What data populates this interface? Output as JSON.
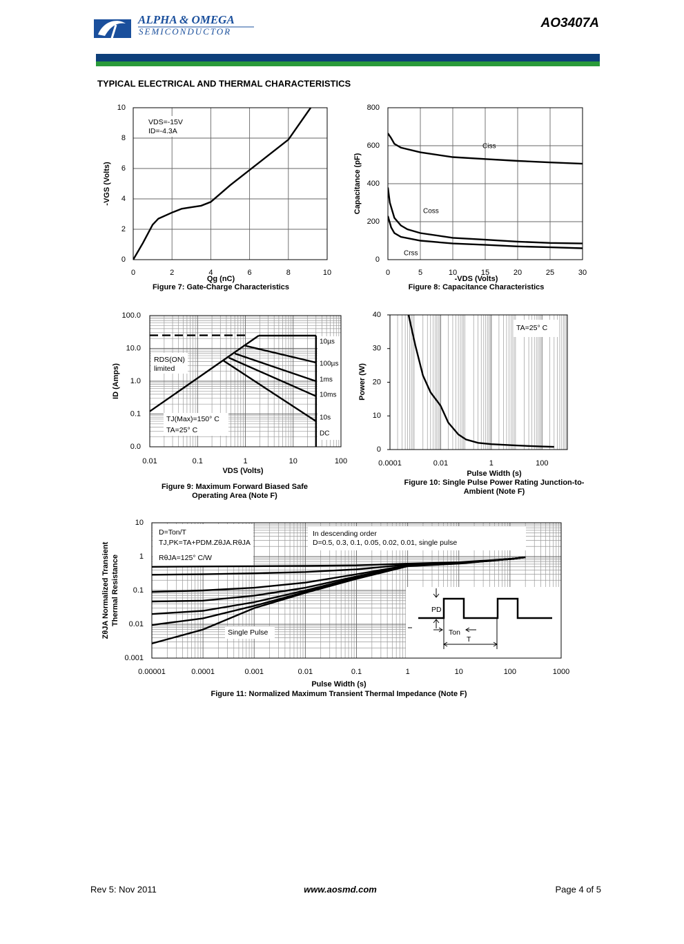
{
  "header": {
    "logo_line1": "ALPHA & OMEGA",
    "logo_line2": "SEMICONDUCTOR",
    "part": "AO3407A"
  },
  "section_title": "TYPICAL ELECTRICAL AND THERMAL CHARACTERISTICS",
  "chart_data": [
    {
      "type": "line",
      "title": "Figure 7: Gate-Charge Characteristics",
      "xlabel": "Qg (nC)",
      "ylabel": "-VGS (Volts)",
      "xscale": "linear",
      "yscale": "linear",
      "xlim": [
        0,
        10
      ],
      "ylim": [
        0,
        10
      ],
      "xticks": [
        0,
        2,
        4,
        6,
        8,
        10
      ],
      "yticks": [
        0,
        2,
        4,
        6,
        8,
        10
      ],
      "grid": true,
      "color": "#000000",
      "annotations": [
        "VDS=-15V",
        "ID=-4.3A"
      ],
      "series": [
        {
          "x": [
            0,
            0.5,
            1,
            1.3,
            2,
            2.5,
            3,
            3.5,
            4,
            5,
            6,
            7,
            8,
            9.15
          ],
          "values": [
            0,
            1.1,
            2.3,
            2.7,
            3.1,
            3.35,
            3.45,
            3.55,
            3.8,
            4.9,
            5.9,
            6.9,
            7.9,
            10
          ]
        }
      ]
    },
    {
      "type": "line",
      "title": "Figure 8: Capacitance Characteristics",
      "xlabel": "-VDS (Volts)",
      "ylabel": "Capacitance (pF)",
      "xscale": "linear",
      "yscale": "linear",
      "xlim": [
        0,
        30
      ],
      "ylim": [
        0,
        800
      ],
      "xticks": [
        0,
        5,
        10,
        15,
        20,
        25,
        30
      ],
      "yticks": [
        0,
        200,
        400,
        600,
        800
      ],
      "grid": true,
      "color": "#000000",
      "series": [
        {
          "name": "Ciss",
          "x": [
            0,
            0.5,
            1,
            2,
            5,
            10,
            15,
            20,
            25,
            30
          ],
          "values": [
            665,
            640,
            610,
            590,
            565,
            540,
            530,
            520,
            512,
            505
          ]
        },
        {
          "name": "Coss",
          "x": [
            0,
            0.3,
            1,
            2,
            3,
            5,
            10,
            15,
            20,
            25,
            30
          ],
          "values": [
            380,
            300,
            220,
            180,
            160,
            140,
            115,
            105,
            95,
            88,
            85
          ]
        },
        {
          "name": "Crss",
          "x": [
            0,
            0.5,
            1,
            2,
            5,
            10,
            15,
            20,
            25,
            30
          ],
          "values": [
            230,
            170,
            140,
            120,
            100,
            85,
            78,
            70,
            65,
            60
          ]
        }
      ]
    },
    {
      "type": "line",
      "title": [
        "Figure 9: Maximum Forward Biased Safe",
        "Operating Area (Note F)"
      ],
      "xlabel": "VDS (Volts)",
      "ylabel": "ID (Amps)",
      "xscale": "log",
      "yscale": "log",
      "xlim": [
        0.01,
        100
      ],
      "ylim": [
        0.01,
        100
      ],
      "xticks": [
        0.01,
        0.1,
        1,
        10,
        100
      ],
      "yticks": [
        {
          "value": 0.01,
          "label": "0.0"
        },
        {
          "value": 0.1,
          "label": "0.1"
        },
        {
          "value": 1,
          "label": "1.0"
        },
        {
          "value": 10,
          "label": "10.0"
        },
        {
          "value": 100,
          "label": "100.0"
        }
      ],
      "grid": true,
      "color": "#000000",
      "annotations": [
        "RDS(ON)",
        "limited",
        "TJ(Max)=150° C",
        "TA=25° C"
      ],
      "series": [
        {
          "x": [
            0.01,
            1.9
          ],
          "values": [
            0.12,
            24.5
          ]
        },
        {
          "style": "dashed",
          "x": [
            0.01,
            1
          ],
          "values": [
            25,
            25
          ]
        },
        {
          "name": "10µs",
          "x": [
            1.9,
            30
          ],
          "values": [
            24.5,
            24.5
          ]
        },
        {
          "name": "100µs",
          "x": [
            1,
            30
          ],
          "values": [
            12,
            3.7
          ]
        },
        {
          "name": "1ms",
          "x": [
            0.6,
            30
          ],
          "values": [
            7,
            1
          ]
        },
        {
          "name": "10ms",
          "x": [
            0.45,
            30
          ],
          "values": [
            5.2,
            0.35
          ]
        },
        {
          "name": "10s",
          "x": [
            0.35,
            30
          ],
          "values": [
            4.2,
            0.06
          ]
        },
        {
          "name": "DC",
          "x": [
            30,
            30
          ],
          "values": [
            24.5,
            0.01
          ]
        }
      ]
    },
    {
      "type": "line",
      "title": [
        "Figure 10: Single Pulse Power Rating Junction-to-",
        "Ambient (Note F)"
      ],
      "xlabel": "Pulse Width (s)",
      "ylabel": "Power (W)",
      "xscale": "log",
      "yscale": "linear",
      "xlim": [
        0.0001,
        1000
      ],
      "ylim": [
        0,
        40
      ],
      "xticks": [
        0.0001,
        0.01,
        1,
        100
      ],
      "yticks": [
        0,
        10,
        20,
        30,
        40
      ],
      "grid": "x",
      "color": "#000000",
      "annotations": [
        "TA=25° C"
      ],
      "series": [
        {
          "x": [
            0.00054,
            0.001,
            0.002,
            0.004,
            0.01,
            0.02,
            0.05,
            0.1,
            0.3,
            1,
            10,
            100,
            300
          ],
          "values": [
            40,
            31,
            22,
            17,
            13,
            8,
            4.5,
            3,
            2,
            1.6,
            1.2,
            0.9,
            0.8
          ]
        }
      ]
    },
    {
      "type": "line",
      "title": "Figure 11: Normalized Maximum Transient Thermal Impedance (Note F)",
      "xlabel": "Pulse Width (s)",
      "ylabel": [
        "ZθJA Normalized Transient",
        "Thermal Resistance"
      ],
      "xscale": "log",
      "yscale": "log",
      "xlim": [
        1e-05,
        1000
      ],
      "ylim": [
        0.001,
        10
      ],
      "xticks": [
        1e-05,
        0.0001,
        0.001,
        0.01,
        0.1,
        1,
        10,
        100,
        1000
      ],
      "yticks": [
        0.001,
        0.01,
        0.1,
        1,
        10
      ],
      "grid": true,
      "color": "#000000",
      "annotations": [
        "D=Ton/T",
        "TJ,PK=TA+PDM.ZθJA.RθJA",
        "RθJA=125° C/W",
        "In descending order",
        "D=0.5, 0.3, 0.1, 0.05, 0.02, 0.01, single pulse",
        "Single Pulse",
        "PD",
        "Ton",
        "T"
      ],
      "series": [
        {
          "x": [
            1e-05,
            0.0001,
            0.001,
            0.01,
            0.1,
            1,
            10,
            100,
            200
          ],
          "values": [
            0.5,
            0.51,
            0.52,
            0.53,
            0.55,
            0.62,
            0.68,
            0.85,
            0.95
          ]
        },
        {
          "x": [
            1e-05,
            0.0001,
            0.001,
            0.01,
            0.1,
            1,
            10,
            100,
            200
          ],
          "values": [
            0.29,
            0.3,
            0.32,
            0.35,
            0.42,
            0.58,
            0.66,
            0.85,
            0.95
          ]
        },
        {
          "x": [
            1e-05,
            0.0001,
            0.001,
            0.01,
            0.1,
            1,
            10,
            100,
            200
          ],
          "values": [
            0.09,
            0.1,
            0.12,
            0.17,
            0.3,
            0.55,
            0.64,
            0.85,
            0.95
          ]
        },
        {
          "x": [
            1e-05,
            0.0001,
            0.001,
            0.01,
            0.1,
            1,
            10,
            100,
            200
          ],
          "values": [
            0.047,
            0.05,
            0.07,
            0.12,
            0.26,
            0.54,
            0.63,
            0.85,
            0.95
          ]
        },
        {
          "x": [
            1e-05,
            0.0001,
            0.001,
            0.01,
            0.1,
            1,
            10,
            100,
            200
          ],
          "values": [
            0.02,
            0.025,
            0.045,
            0.1,
            0.24,
            0.53,
            0.63,
            0.85,
            0.95
          ]
        },
        {
          "x": [
            1e-05,
            0.0001,
            0.001,
            0.01,
            0.1,
            1,
            10,
            100,
            200
          ],
          "values": [
            0.0095,
            0.015,
            0.035,
            0.09,
            0.23,
            0.53,
            0.63,
            0.85,
            0.95
          ]
        },
        {
          "x": [
            1e-05,
            0.0001,
            0.001,
            0.01,
            0.1,
            1,
            10,
            100,
            200
          ],
          "values": [
            0.0027,
            0.007,
            0.03,
            0.085,
            0.22,
            0.52,
            0.62,
            0.85,
            0.95
          ]
        }
      ]
    }
  ],
  "footer": {
    "revision": "Rev 5: Nov 2011",
    "website": "www.aosmd.com",
    "page": "Page 4 of 5"
  }
}
